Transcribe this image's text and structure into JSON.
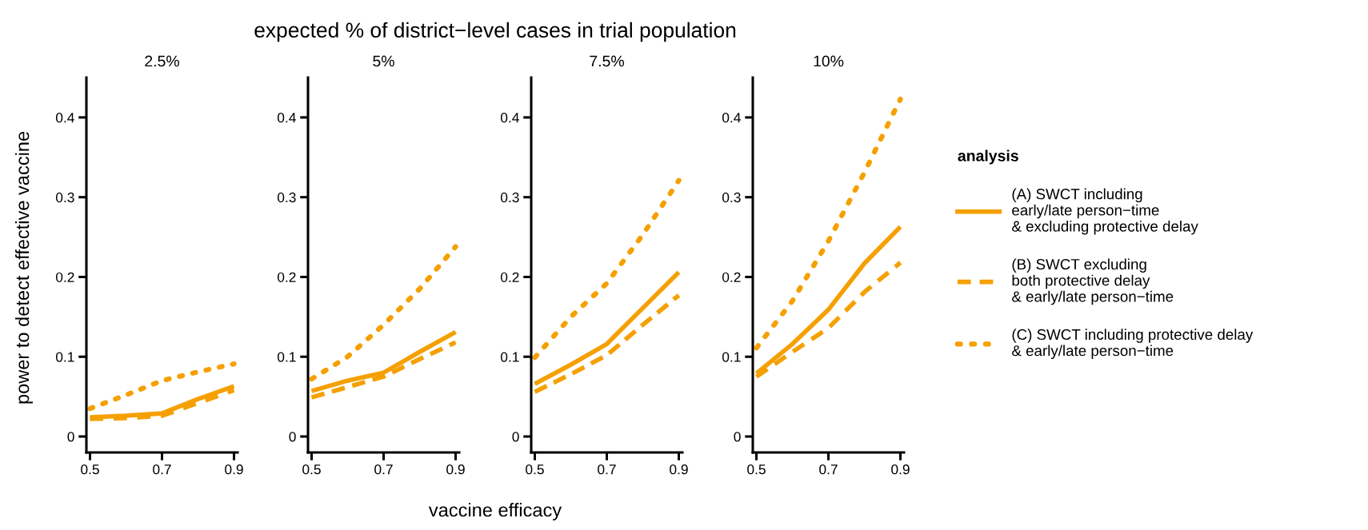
{
  "chart_data": [
    {
      "type": "line",
      "subtitle": "2.5%",
      "ylabel": "power to detect effective vaccine",
      "annotations": [
        "expected % of district−level cases in trial population",
        "vaccine efficacy"
      ],
      "x": [
        0.5,
        0.6,
        0.7,
        0.8,
        0.9
      ],
      "xlim": [
        0.49,
        0.91
      ],
      "xticks": [
        0.5,
        0.7,
        0.9
      ],
      "ylim": [
        -0.02,
        0.45
      ],
      "yticks": [
        0,
        0.1,
        0.2,
        0.3,
        0.4
      ],
      "grid": false,
      "series": [
        {
          "color": "#f5a000",
          "line_style": "solid",
          "values": [
            0.024,
            0.026,
            0.029,
            0.047,
            0.063
          ]
        },
        {
          "color": "#f5a000",
          "line_style": "dashed",
          "values": [
            0.022,
            0.023,
            0.026,
            0.042,
            0.058
          ]
        },
        {
          "color": "#f5a000",
          "line_style": "dotted",
          "values": [
            0.035,
            0.052,
            0.07,
            0.081,
            0.091
          ]
        }
      ]
    },
    {
      "type": "line",
      "subtitle": "5%",
      "x": [
        0.5,
        0.6,
        0.7,
        0.8,
        0.9
      ],
      "xlim": [
        0.49,
        0.91
      ],
      "xticks": [
        0.5,
        0.7,
        0.9
      ],
      "ylim": [
        -0.02,
        0.45
      ],
      "yticks": [
        0,
        0.1,
        0.2,
        0.3,
        0.4
      ],
      "grid": false,
      "series": [
        {
          "color": "#f5a000",
          "line_style": "solid",
          "values": [
            0.057,
            0.07,
            0.08,
            0.106,
            0.131
          ]
        },
        {
          "color": "#f5a000",
          "line_style": "dashed",
          "values": [
            0.049,
            0.062,
            0.075,
            0.097,
            0.118
          ]
        },
        {
          "color": "#f5a000",
          "line_style": "dotted",
          "values": [
            0.072,
            0.1,
            0.14,
            0.185,
            0.238
          ]
        }
      ]
    },
    {
      "type": "line",
      "subtitle": "7.5%",
      "x": [
        0.5,
        0.6,
        0.7,
        0.8,
        0.9
      ],
      "xlim": [
        0.49,
        0.91
      ],
      "xticks": [
        0.5,
        0.7,
        0.9
      ],
      "ylim": [
        -0.02,
        0.45
      ],
      "yticks": [
        0,
        0.1,
        0.2,
        0.3,
        0.4
      ],
      "grid": false,
      "series": [
        {
          "color": "#f5a000",
          "line_style": "solid",
          "values": [
            0.066,
            0.09,
            0.116,
            0.161,
            0.206
          ]
        },
        {
          "color": "#f5a000",
          "line_style": "dashed",
          "values": [
            0.056,
            0.078,
            0.102,
            0.14,
            0.177
          ]
        },
        {
          "color": "#f5a000",
          "line_style": "dotted",
          "values": [
            0.099,
            0.15,
            0.192,
            0.253,
            0.321
          ]
        }
      ]
    },
    {
      "type": "line",
      "subtitle": "10%",
      "legend_title": "analysis",
      "x": [
        0.5,
        0.6,
        0.7,
        0.8,
        0.9
      ],
      "xlim": [
        0.49,
        0.91
      ],
      "xticks": [
        0.5,
        0.7,
        0.9
      ],
      "ylim": [
        -0.02,
        0.45
      ],
      "yticks": [
        0,
        0.1,
        0.2,
        0.3,
        0.4
      ],
      "grid": false,
      "legend": "right",
      "series": [
        {
          "name": "(A) SWCT including\nearly/late person−time\n& excluding protective delay",
          "color": "#f5a000",
          "line_style": "solid",
          "values": [
            0.079,
            0.116,
            0.159,
            0.217,
            0.263
          ]
        },
        {
          "name": "(B) SWCT excluding\nboth protective delay\n& early/late person−time",
          "color": "#f5a000",
          "line_style": "dashed",
          "values": [
            0.075,
            0.106,
            0.136,
            0.181,
            0.218
          ]
        },
        {
          "name": "(C) SWCT including protective delay\n& early/late person−time",
          "color": "#f5a000",
          "line_style": "dotted",
          "values": [
            0.111,
            0.17,
            0.245,
            0.331,
            0.423
          ]
        }
      ]
    }
  ]
}
